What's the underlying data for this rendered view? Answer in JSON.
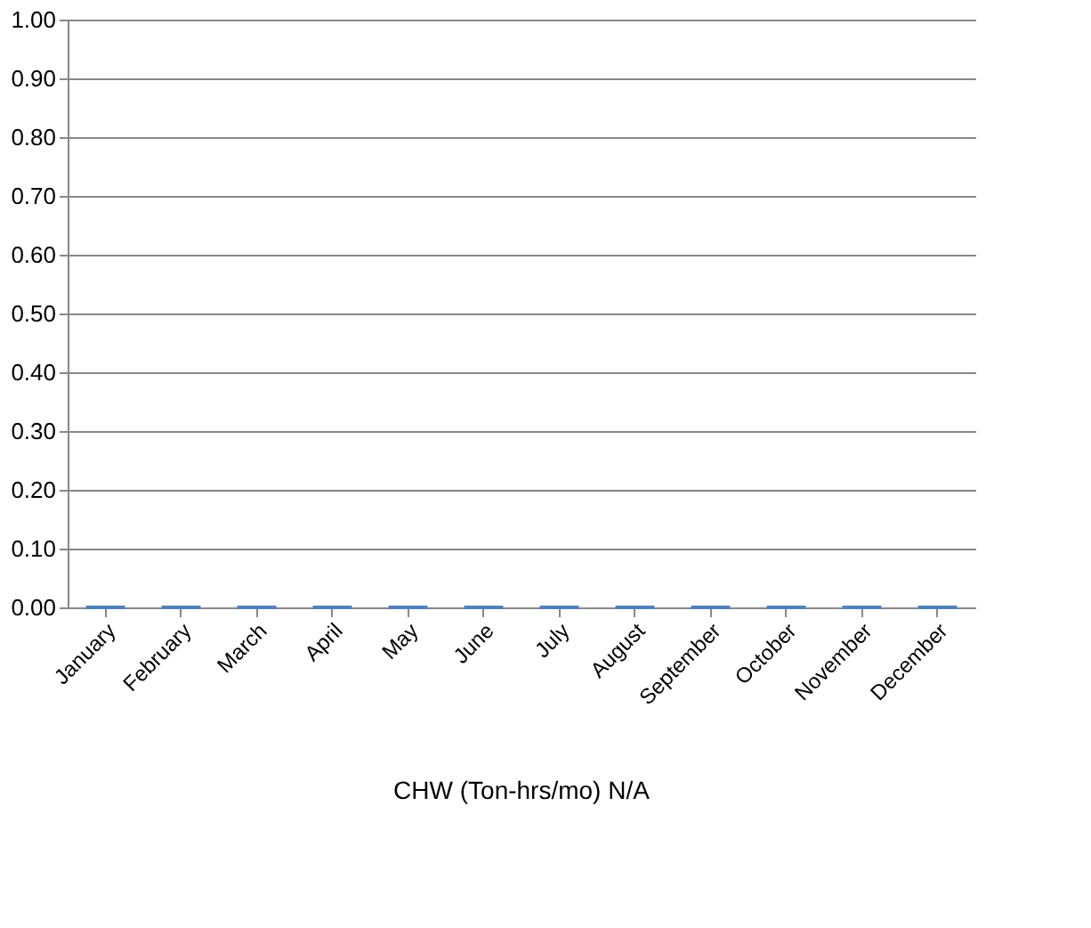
{
  "chart_data": {
    "type": "bar",
    "title": "CHW (Ton-hrs/mo) N/A",
    "categories": [
      "January",
      "February",
      "March",
      "April",
      "May",
      "June",
      "July",
      "August",
      "September",
      "October",
      "November",
      "December"
    ],
    "values": [
      0,
      0,
      0,
      0,
      0,
      0,
      0,
      0,
      0,
      0,
      0,
      0
    ],
    "color": "#4f81bd",
    "ylim": [
      0,
      1
    ],
    "yticks": [
      {
        "value": 0,
        "label": "0.00"
      },
      {
        "value": 0.1,
        "label": "0.10"
      },
      {
        "value": 0.2,
        "label": "0.20"
      },
      {
        "value": 0.3,
        "label": "0.30"
      },
      {
        "value": 0.4,
        "label": "0.40"
      },
      {
        "value": 0.5,
        "label": "0.50"
      },
      {
        "value": 0.6,
        "label": "0.60"
      },
      {
        "value": 0.7,
        "label": "0.70"
      },
      {
        "value": 0.8,
        "label": "0.80"
      },
      {
        "value": 0.9,
        "label": "0.90"
      },
      {
        "value": 1,
        "label": "1.00"
      }
    ],
    "grid": "y"
  }
}
